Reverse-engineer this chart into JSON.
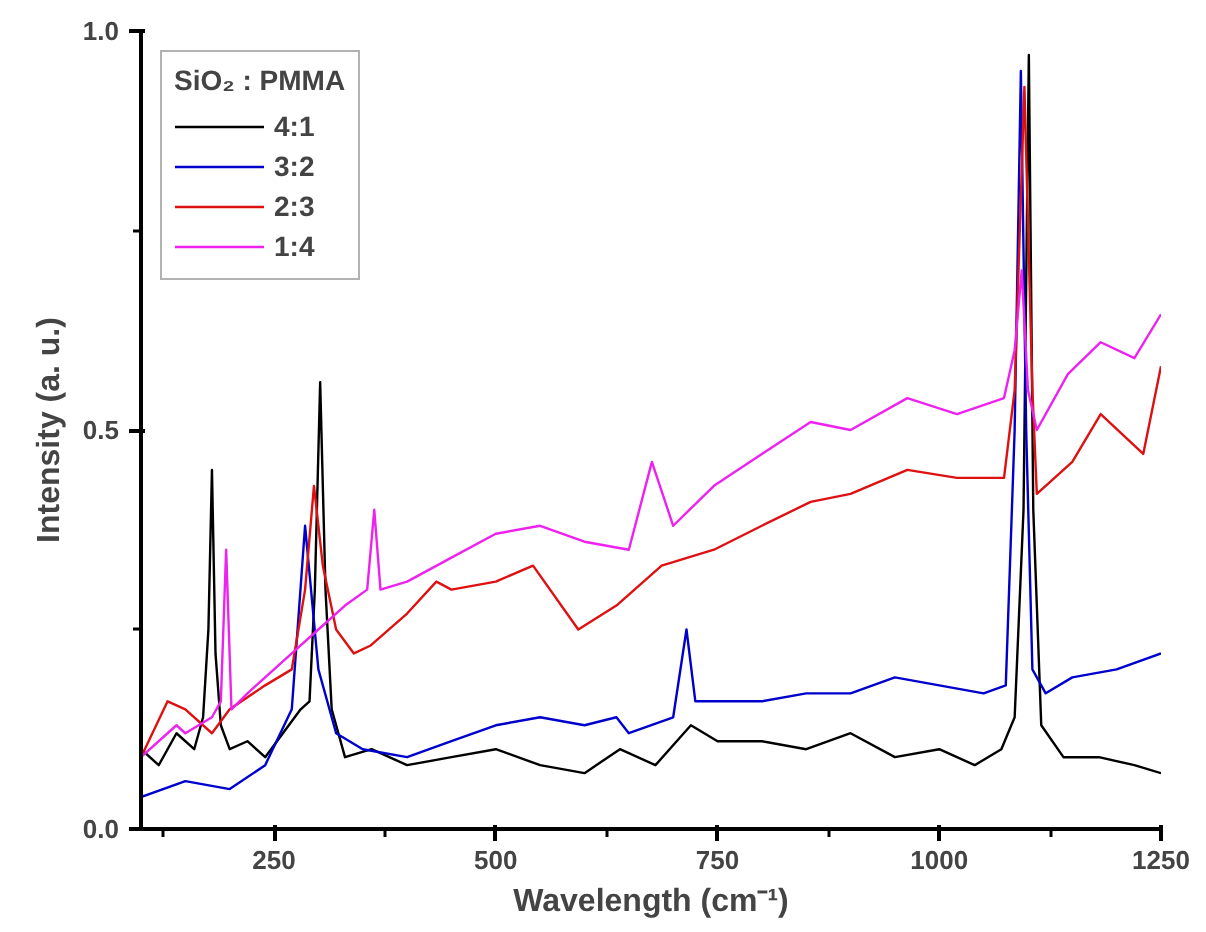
{
  "chart_data": {
    "type": "line",
    "xlabel": "Wavelength (cm⁻¹)",
    "ylabel": "Intensity (a. u.)",
    "legend_title": "SiO₂ : PMMA",
    "legend": "top left",
    "grid": false,
    "xlim": [
      100,
      1250
    ],
    "xticks": [
      250,
      500,
      750,
      1000,
      1250
    ],
    "ylim": [
      0,
      1.0
    ],
    "yticks": [
      {
        "value": 0,
        "label": "0.0"
      },
      {
        "value": 0.5,
        "label": "0.5"
      },
      {
        "value": 1.0,
        "label": "1.0"
      }
    ],
    "series": [
      {
        "name": "4:1",
        "color": "#000000",
        "x": [
          100,
          120,
          140,
          160,
          170,
          176,
          180,
          184,
          190,
          200,
          220,
          240,
          260,
          280,
          290,
          296,
          302,
          308,
          315,
          330,
          360,
          400,
          450,
          500,
          550,
          600,
          640,
          680,
          720,
          750,
          800,
          850,
          900,
          950,
          1000,
          1040,
          1070,
          1085,
          1095,
          1101,
          1106,
          1115,
          1140,
          1180,
          1220,
          1250
        ],
        "values": [
          0.1,
          0.08,
          0.12,
          0.1,
          0.14,
          0.25,
          0.45,
          0.22,
          0.13,
          0.1,
          0.11,
          0.09,
          0.12,
          0.15,
          0.16,
          0.3,
          0.56,
          0.3,
          0.15,
          0.09,
          0.1,
          0.08,
          0.09,
          0.1,
          0.08,
          0.07,
          0.1,
          0.08,
          0.13,
          0.11,
          0.11,
          0.1,
          0.12,
          0.09,
          0.1,
          0.08,
          0.1,
          0.14,
          0.4,
          0.97,
          0.4,
          0.13,
          0.09,
          0.09,
          0.08,
          0.07
        ]
      },
      {
        "name": "3:2",
        "color": "#0000cc",
        "x": [
          100,
          150,
          200,
          240,
          270,
          285,
          300,
          320,
          350,
          400,
          450,
          500,
          550,
          600,
          636,
          650,
          700,
          715,
          725,
          800,
          850,
          900,
          950,
          1000,
          1050,
          1075,
          1085,
          1092,
          1098,
          1105,
          1120,
          1150,
          1200,
          1250
        ],
        "values": [
          0.04,
          0.06,
          0.05,
          0.08,
          0.15,
          0.38,
          0.2,
          0.12,
          0.1,
          0.09,
          0.11,
          0.13,
          0.14,
          0.13,
          0.14,
          0.12,
          0.14,
          0.25,
          0.16,
          0.16,
          0.17,
          0.17,
          0.19,
          0.18,
          0.17,
          0.18,
          0.5,
          0.95,
          0.5,
          0.2,
          0.17,
          0.19,
          0.2,
          0.22
        ]
      },
      {
        "name": "2:3",
        "color": "#dd1111",
        "x": [
          100,
          130,
          150,
          180,
          200,
          240,
          270,
          285,
          295,
          305,
          320,
          340,
          359,
          400,
          433,
          450,
          500,
          542,
          593,
          636,
          687,
          746,
          800,
          855,
          900,
          964,
          1020,
          1073,
          1085,
          1096,
          1105,
          1110,
          1150,
          1182,
          1230,
          1250
        ],
        "values": [
          0.09,
          0.16,
          0.15,
          0.12,
          0.15,
          0.18,
          0.2,
          0.3,
          0.43,
          0.33,
          0.25,
          0.22,
          0.23,
          0.27,
          0.31,
          0.3,
          0.31,
          0.33,
          0.25,
          0.28,
          0.33,
          0.35,
          0.38,
          0.41,
          0.42,
          0.45,
          0.44,
          0.44,
          0.55,
          0.93,
          0.55,
          0.42,
          0.46,
          0.52,
          0.47,
          0.58
        ]
      },
      {
        "name": "1:4",
        "color": "#ee22ee",
        "x": [
          100,
          140,
          150,
          180,
          190,
          196,
          202,
          220,
          250,
          280,
          300,
          330,
          355,
          363,
          370,
          400,
          450,
          500,
          550,
          600,
          650,
          676,
          700,
          746,
          800,
          855,
          900,
          964,
          1020,
          1073,
          1085,
          1093,
          1100,
          1110,
          1145,
          1182,
          1220,
          1250
        ],
        "values": [
          0.09,
          0.13,
          0.12,
          0.14,
          0.16,
          0.35,
          0.15,
          0.17,
          0.2,
          0.23,
          0.25,
          0.28,
          0.3,
          0.4,
          0.3,
          0.31,
          0.34,
          0.37,
          0.38,
          0.36,
          0.35,
          0.46,
          0.38,
          0.43,
          0.47,
          0.51,
          0.5,
          0.54,
          0.52,
          0.54,
          0.6,
          0.7,
          0.55,
          0.5,
          0.57,
          0.61,
          0.59,
          0.645
        ]
      }
    ]
  }
}
